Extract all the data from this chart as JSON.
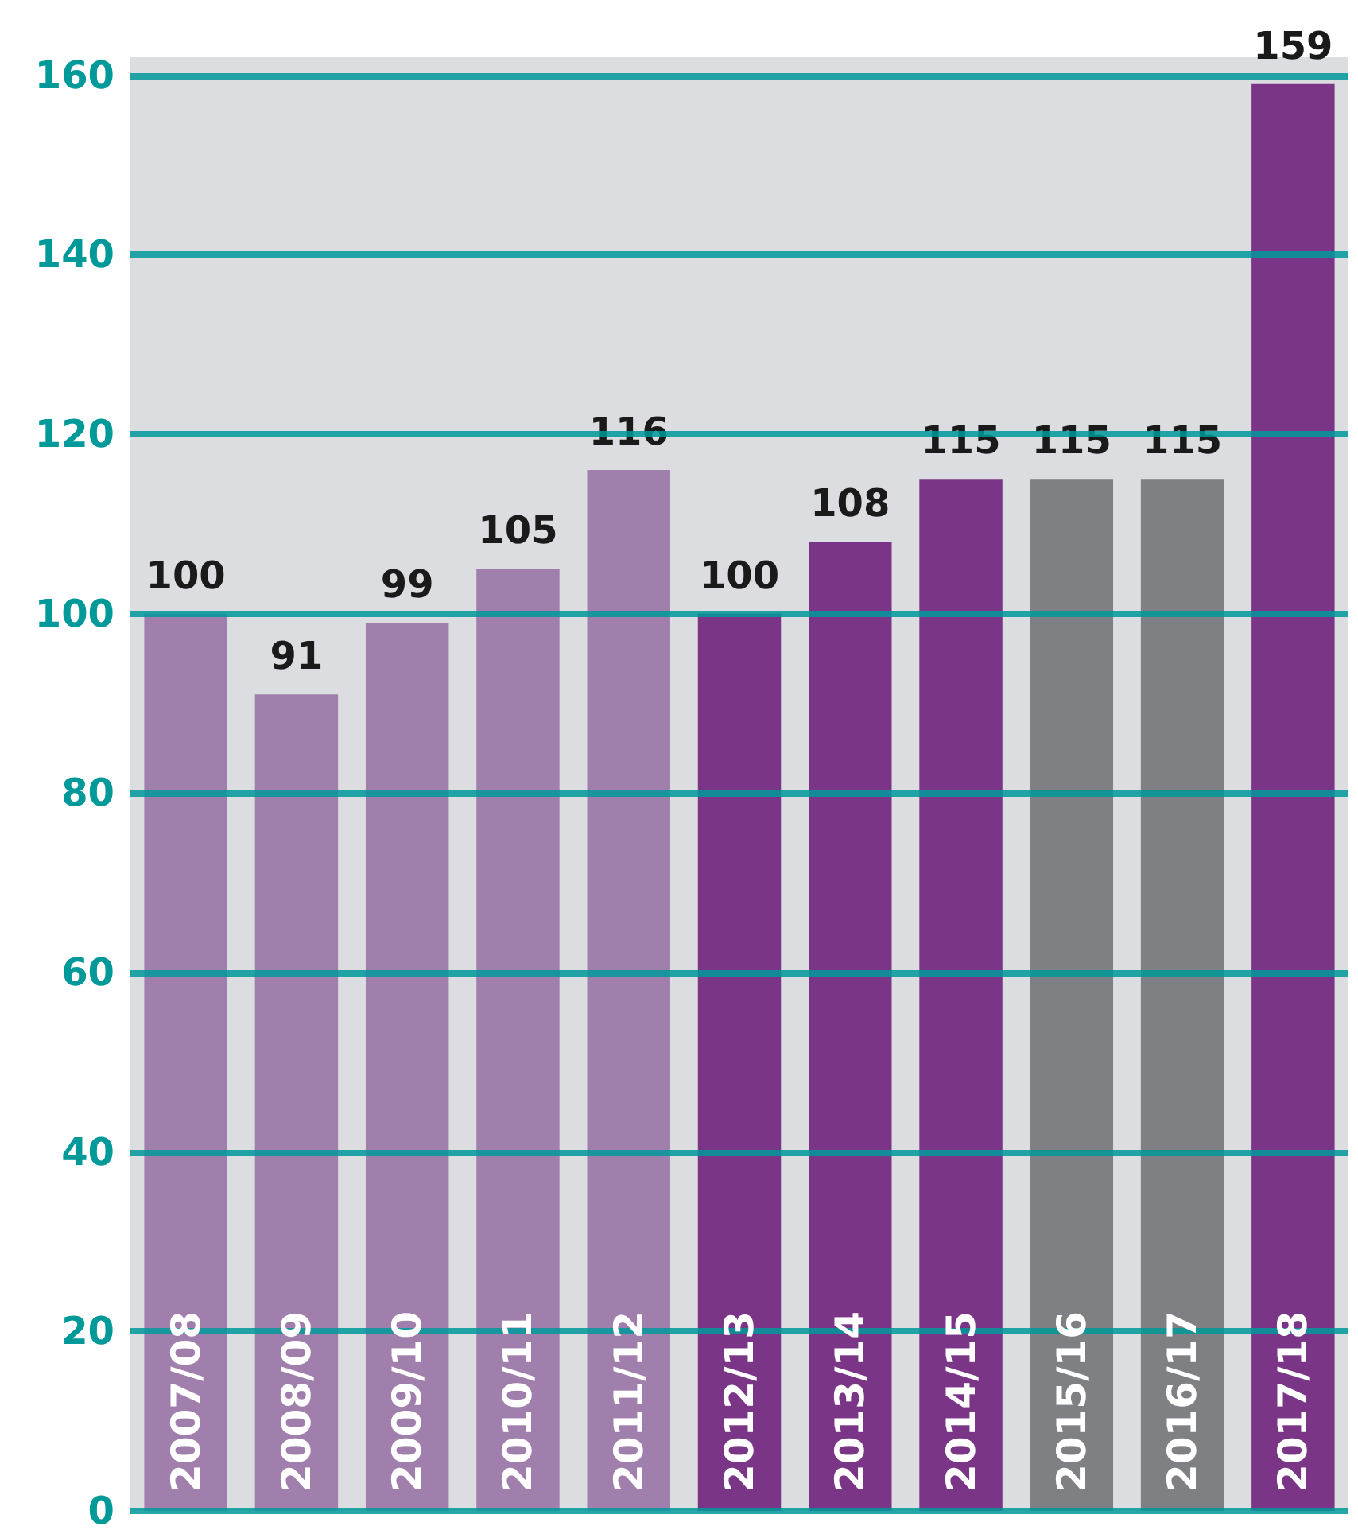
{
  "chart_data": {
    "type": "bar",
    "categories": [
      "2007/08",
      "2008/09",
      "2009/10",
      "2010/11",
      "2011/12",
      "2012/13",
      "2013/14",
      "2014/15",
      "2015/16",
      "2016/17",
      "2017/18"
    ],
    "values": [
      100,
      91,
      99,
      105,
      116,
      100,
      108,
      115,
      115,
      115,
      159
    ],
    "colors": [
      "#a17fac",
      "#a17fac",
      "#a17fac",
      "#a17fac",
      "#a17fac",
      "#7a3586",
      "#7a3586",
      "#7a3586",
      "#7e8083",
      "#7e8083",
      "#7a3586"
    ],
    "ylim": [
      0,
      162
    ],
    "yticks": [
      0,
      20,
      40,
      60,
      80,
      100,
      120,
      140,
      160
    ],
    "grid": "y",
    "data_labels": true
  }
}
